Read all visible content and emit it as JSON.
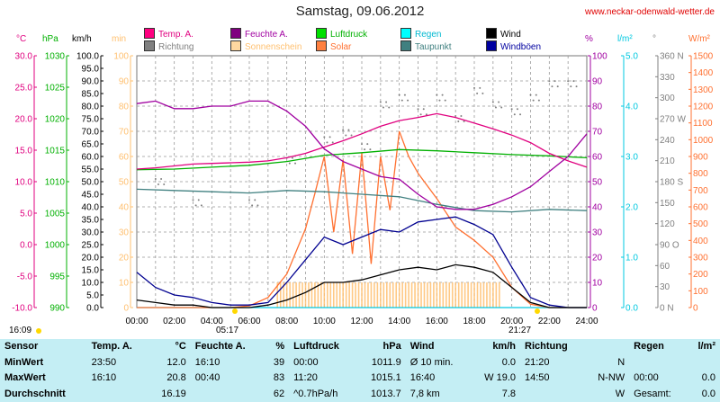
{
  "title": "Samstag, 09.06.2012",
  "site": "www.neckar-odenwald-wetter.de",
  "units": {
    "temp": "°C",
    "pressure": "hPa",
    "wind": "km/h",
    "sunshine": "min",
    "humidity": "%",
    "rain": "l/m²",
    "direction": "°",
    "solar": "W/m²"
  },
  "legend": [
    {
      "label": "Temp. A.",
      "color": "#ff0080"
    },
    {
      "label": "Feuchte A.",
      "color": "#800080"
    },
    {
      "label": "Luftdruck",
      "color": "#00e000"
    },
    {
      "label": "Regen",
      "color": "#00ffff"
    },
    {
      "label": "Wind",
      "color": "#000000"
    },
    {
      "label": "Richtung",
      "color": "#808080"
    },
    {
      "label": "Sonnenschein",
      "color": "#ffd8a0"
    },
    {
      "label": "Solar",
      "color": "#ff8040"
    },
    {
      "label": "Taupunkt",
      "color": "#408080"
    },
    {
      "label": "Windböen",
      "color": "#0000a0"
    }
  ],
  "colors": {
    "temp": "#e0007f",
    "pressure": "#00b000",
    "wind": "#000000",
    "sunshine": "#ffc070",
    "humidity": "#a000a0",
    "rain": "#00c8e0",
    "direction": "#808080",
    "solar": "#ff7030",
    "dewpoint": "#408080",
    "gusts": "#000090",
    "grid": "#999999"
  },
  "sun": {
    "rise": "05:17",
    "set": "21:27",
    "left_time": "16:09"
  },
  "chart_data": {
    "type": "line",
    "title": "Samstag, 09.06.2012",
    "x_range": [
      "00:00",
      "24:00"
    ],
    "x_ticks": [
      "00:00",
      "02:00",
      "04:00",
      "06:00",
      "08:00",
      "10:00",
      "12:00",
      "14:00",
      "16:00",
      "18:00",
      "20:00",
      "22:00",
      "24:00"
    ],
    "axes": {
      "temp": {
        "unit": "°C",
        "min": -10,
        "max": 30,
        "ticks": [
          "30.0",
          "25.0",
          "20.0",
          "15.0",
          "10.0",
          "5.0",
          "0.0",
          "-5.0",
          "-10.0"
        ]
      },
      "pressure": {
        "unit": "hPa",
        "min": 990,
        "max": 1030,
        "ticks": [
          "1030",
          "1025",
          "1020",
          "1015",
          "1010",
          "1005",
          "1000",
          "995",
          "990"
        ]
      },
      "wind": {
        "unit": "km/h",
        "min": 0,
        "max": 100,
        "ticks": [
          "100.0",
          "95.0",
          "90.0",
          "85.0",
          "80.0",
          "75.0",
          "70.0",
          "65.0",
          "60.0",
          "55.0",
          "50.0",
          "45.0",
          "40.0",
          "35.0",
          "30.0",
          "25.0",
          "20.0",
          "15.0",
          "10.0",
          "5.0",
          "0.0"
        ]
      },
      "sunshine": {
        "unit": "min",
        "min": 0,
        "max": 100,
        "ticks": [
          "100",
          "90",
          "80",
          "70",
          "60",
          "50",
          "40",
          "30",
          "20",
          "10",
          "0"
        ]
      },
      "humidity": {
        "unit": "%",
        "min": 0,
        "max": 100,
        "ticks": [
          "100",
          "90",
          "80",
          "70",
          "60",
          "50",
          "40",
          "30",
          "20",
          "10",
          "0"
        ]
      },
      "rain": {
        "unit": "l/m²",
        "min": 0,
        "max": 5,
        "ticks": [
          "5.0",
          "4.0",
          "3.0",
          "2.0",
          "1.0",
          "0.0"
        ]
      },
      "direction": {
        "unit": "°",
        "min": 0,
        "max": 360,
        "ticks": [
          "360 N",
          "330",
          "300",
          "270 W",
          "240",
          "210",
          "180 S",
          "150",
          "120",
          "90 O",
          "60",
          "30",
          "0 N"
        ]
      },
      "solar": {
        "unit": "W/m²",
        "min": 0,
        "max": 1500,
        "ticks": [
          "1500",
          "1400",
          "1300",
          "1200",
          "1100",
          "1000",
          "900",
          "800",
          "700",
          "600",
          "500",
          "400",
          "300",
          "200",
          "100",
          "0"
        ]
      }
    },
    "series": [
      {
        "name": "Temp. A.",
        "axis": "temp",
        "x": [
          0,
          1,
          2,
          3,
          4,
          5,
          6,
          7,
          8,
          9,
          10,
          11,
          12,
          13,
          14,
          15,
          16,
          17,
          18,
          19,
          20,
          21,
          22,
          23,
          24
        ],
        "y": [
          12.0,
          12.2,
          12.5,
          12.8,
          12.9,
          13.0,
          13.1,
          13.3,
          13.8,
          14.5,
          15.5,
          16.5,
          17.6,
          18.8,
          19.7,
          20.2,
          20.8,
          20.2,
          19.3,
          18.4,
          17.4,
          16.2,
          14.5,
          13.3,
          12.3
        ]
      },
      {
        "name": "Feuchte A.",
        "axis": "humidity",
        "x": [
          0,
          1,
          2,
          3,
          4,
          5,
          6,
          7,
          8,
          9,
          10,
          11,
          12,
          13,
          14,
          15,
          16,
          17,
          18,
          19,
          20,
          21,
          22,
          23,
          24
        ],
        "y": [
          81,
          82,
          79,
          79,
          80,
          80,
          82,
          82,
          78,
          72,
          63,
          58,
          55,
          52,
          51,
          45,
          40,
          39,
          39,
          41,
          44,
          48,
          54,
          60,
          69
        ]
      },
      {
        "name": "Luftdruck",
        "axis": "pressure",
        "x": [
          0,
          2,
          4,
          6,
          8,
          10,
          12,
          14,
          16,
          18,
          20,
          22,
          24
        ],
        "y": [
          1011.9,
          1012.0,
          1012.3,
          1012.6,
          1013.2,
          1014.2,
          1014.6,
          1015.1,
          1014.9,
          1014.6,
          1014.3,
          1014.1,
          1013.8
        ]
      },
      {
        "name": "Taupunkt",
        "axis": "temp",
        "x": [
          0,
          2,
          4,
          6,
          8,
          10,
          12,
          14,
          16,
          18,
          20,
          22,
          24
        ],
        "y": [
          8.8,
          8.6,
          8.4,
          8.2,
          8.6,
          8.4,
          8.0,
          7.6,
          6.4,
          5.4,
          5.2,
          5.6,
          5.4
        ]
      },
      {
        "name": "Wind",
        "axis": "wind",
        "x": [
          0,
          1,
          2,
          3,
          4,
          5,
          6,
          7,
          8,
          9,
          10,
          11,
          12,
          13,
          14,
          15,
          16,
          17,
          18,
          19,
          20,
          21,
          22,
          23,
          24
        ],
        "y": [
          3,
          2,
          1,
          1,
          0,
          0,
          0,
          1,
          3,
          6,
          10,
          10,
          11,
          13,
          15,
          16,
          15,
          17,
          16,
          14,
          8,
          2,
          0,
          0,
          0
        ]
      },
      {
        "name": "Windböen",
        "axis": "wind",
        "x": [
          0,
          1,
          2,
          3,
          4,
          5,
          6,
          7,
          8,
          9,
          10,
          11,
          12,
          13,
          14,
          15,
          16,
          17,
          18,
          19,
          20,
          21,
          22,
          23,
          24
        ],
        "y": [
          14,
          8,
          5,
          4,
          2,
          1,
          1,
          2,
          10,
          19,
          28,
          25,
          28,
          31,
          30,
          34,
          35,
          36,
          33,
          29,
          16,
          4,
          1,
          0,
          0
        ]
      },
      {
        "name": "Solar",
        "axis": "solar",
        "x": [
          0,
          5,
          6,
          7,
          8,
          9,
          9.5,
          10,
          10.5,
          11,
          11.5,
          12,
          12.5,
          13,
          13.5,
          14,
          14.5,
          15,
          16,
          17,
          18,
          19,
          20,
          21,
          22,
          24
        ],
        "y": [
          0,
          0,
          10,
          60,
          200,
          470,
          680,
          900,
          450,
          880,
          320,
          920,
          260,
          900,
          580,
          1050,
          900,
          800,
          650,
          480,
          400,
          300,
          120,
          20,
          0,
          0
        ]
      },
      {
        "name": "Sonnenschein",
        "axis": "sunshine",
        "x": [
          7.5,
          8,
          9,
          10,
          11,
          12,
          13,
          14,
          15,
          16,
          17,
          18,
          19,
          19.4
        ],
        "y": [
          10,
          10,
          10,
          10,
          10,
          10,
          10,
          10,
          10,
          10,
          10,
          10,
          10,
          10
        ]
      },
      {
        "name": "Richtung",
        "axis": "direction",
        "x": [
          1,
          3,
          6,
          8,
          10,
          11,
          12,
          13,
          14,
          15,
          16,
          17,
          18,
          19,
          20,
          21,
          22,
          23
        ],
        "y": [
          180,
          150,
          150,
          210,
          240,
          250,
          230,
          290,
          300,
          280,
          300,
          270,
          310,
          290,
          280,
          300,
          320,
          320
        ]
      },
      {
        "name": "Regen",
        "axis": "rain",
        "x": [
          0,
          24
        ],
        "y": [
          0,
          0
        ]
      }
    ]
  },
  "stats": {
    "header": [
      "Sensor",
      "Temp. A.",
      "°C",
      "Feuchte A.",
      "%",
      "Luftdruck",
      "hPa",
      "Wind",
      "km/h",
      "Richtung",
      "",
      "Regen",
      "l/m²"
    ],
    "rows": [
      [
        "MinWert",
        "23:50",
        "12.0",
        "16:10",
        "39",
        "00:00",
        "1011.9",
        "Ø 10 min.",
        "0.0",
        "21:20",
        "N",
        "",
        ""
      ],
      [
        "MaxWert",
        "16:10",
        "20.8",
        "00:40",
        "83",
        "11:20",
        "1015.1",
        "16:40",
        "W 19.0",
        "14:50",
        "N-NW",
        "00:00",
        "0.0"
      ],
      [
        "Durchschnitt",
        "",
        "16.19",
        "",
        "62",
        "^0.7hPa/h",
        "1013.7",
        "7,8 km",
        "7.8",
        "",
        "W",
        "Gesamt:",
        "0.0"
      ]
    ]
  }
}
